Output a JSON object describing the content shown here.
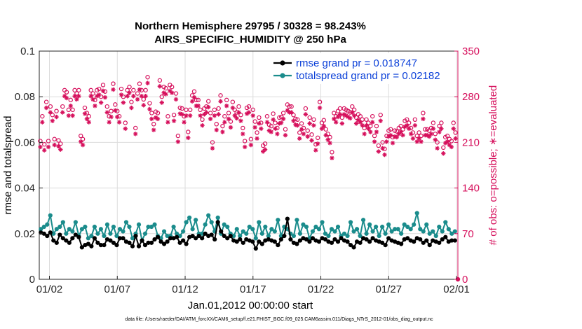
{
  "chart_data": {
    "type": "line",
    "title": "Northern Hemisphere 29795 / 30328 = 98.243%",
    "subtitle": "AIRS_SPECIFIC_HUMIDITY @ 250 hPa",
    "xlabel": "Jan.01,2012 00:00:00 start",
    "ylabel": "rmse and totalspread",
    "y2label": "# of obs: o=possible; ∗=evaluated",
    "footnote": "data file: /Users/raeder/DAI/ATM_forcXX/CAM6_setup/f.e21.FHIST_BGC.f09_025.CAM6assim.011/Diags_NTrS_2012-01/obs_diag_output.nc",
    "x_ticks": [
      "01/02",
      "01/07",
      "01/12",
      "01/17",
      "01/22",
      "01/27",
      "02/01"
    ],
    "x_tick_days": [
      1,
      6,
      11,
      16,
      21,
      26,
      31
    ],
    "xlim": [
      0.25,
      31.1
    ],
    "y_ticks": [
      "0",
      "0.02",
      "0.04",
      "0.06",
      "0.08",
      "0.1"
    ],
    "ylim": [
      0,
      0.1
    ],
    "y2_ticks": [
      "0",
      "70",
      "140",
      "210",
      "280",
      "350"
    ],
    "y2lim": [
      0,
      350
    ],
    "grid": true,
    "legend_position": "top-right",
    "colors": {
      "rmse": "#000000",
      "spread": "#1a8c8c",
      "obs": "#d6105c",
      "legend_text": "#0a3fd8"
    },
    "series": [
      {
        "name": "rmse grand pr = 0.018747",
        "axis": "left",
        "marker": "filled-circle",
        "values": [
          0.0205,
          0.02,
          0.019,
          0.0205,
          0.017,
          0.016,
          0.0195,
          0.018,
          0.017,
          0.016,
          0.018,
          0.0195,
          0.0185,
          0.014,
          0.015,
          0.0155,
          0.0145,
          0.018,
          0.016,
          0.015,
          0.015,
          0.0175,
          0.017,
          0.016,
          0.015,
          0.018,
          0.018,
          0.0165,
          0.016,
          0.0145,
          0.019,
          0.0145,
          0.017,
          0.015,
          0.016,
          0.016,
          0.0175,
          0.0185,
          0.0165,
          0.0155,
          0.0165,
          0.018,
          0.018,
          0.0185,
          0.016,
          0.017,
          0.0155,
          0.0185,
          0.019,
          0.018,
          0.019,
          0.018,
          0.02,
          0.019,
          0.0195,
          0.0175,
          0.025,
          0.021,
          0.019,
          0.018,
          0.019,
          0.017,
          0.0165,
          0.0175,
          0.016,
          0.0175,
          0.017,
          0.0165,
          0.0135,
          0.0165,
          0.0155,
          0.017,
          0.0175,
          0.017,
          0.0165,
          0.015,
          0.0175,
          0.019,
          0.0265,
          0.0175,
          0.016,
          0.0155,
          0.017,
          0.018,
          0.0175,
          0.0165,
          0.018,
          0.017,
          0.0165,
          0.018,
          0.0175,
          0.0165,
          0.016,
          0.0175,
          0.0165,
          0.018,
          0.017,
          0.0165,
          0.015,
          0.014,
          0.0165,
          0.016,
          0.018,
          0.0175,
          0.0165,
          0.018,
          0.017,
          0.0165,
          0.016,
          0.015,
          0.018,
          0.017,
          0.0165,
          0.016,
          0.0155,
          0.0175,
          0.018,
          0.017,
          0.0165,
          0.018,
          0.0175,
          0.016,
          0.017,
          0.015,
          0.017,
          0.0165,
          0.016,
          0.0175,
          0.0185,
          0.0165,
          0.017,
          0.017
        ]
      },
      {
        "name": "totalspread grand pr = 0.02182",
        "axis": "left",
        "marker": "filled-circle",
        "values": [
          0.022,
          0.023,
          0.024,
          0.028,
          0.02,
          0.022,
          0.023,
          0.025,
          0.02,
          0.022,
          0.021,
          0.025,
          0.019,
          0.022,
          0.023,
          0.018,
          0.019,
          0.023,
          0.02,
          0.022,
          0.019,
          0.024,
          0.02,
          0.023,
          0.019,
          0.022,
          0.021,
          0.025,
          0.023,
          0.018,
          0.02,
          0.024,
          0.017,
          0.02,
          0.023,
          0.023,
          0.024,
          0.019,
          0.018,
          0.021,
          0.019,
          0.019,
          0.023,
          0.02,
          0.019,
          0.021,
          0.025,
          0.027,
          0.022,
          0.026,
          0.02,
          0.02,
          0.024,
          0.028,
          0.025,
          0.021,
          0.027,
          0.02,
          0.024,
          0.023,
          0.02,
          0.019,
          0.022,
          0.019,
          0.021,
          0.02,
          0.023,
          0.022,
          0.018,
          0.025,
          0.02,
          0.023,
          0.019,
          0.022,
          0.021,
          0.026,
          0.019,
          0.023,
          0.022,
          0.02,
          0.019,
          0.026,
          0.02,
          0.024,
          0.023,
          0.018,
          0.021,
          0.023,
          0.022,
          0.025,
          0.02,
          0.019,
          0.022,
          0.021,
          0.023,
          0.019,
          0.02,
          0.019,
          0.025,
          0.021,
          0.022,
          0.019,
          0.026,
          0.02,
          0.024,
          0.021,
          0.023,
          0.019,
          0.023,
          0.02,
          0.024,
          0.021,
          0.022,
          0.022,
          0.02,
          0.024,
          0.023,
          0.022,
          0.024,
          0.029,
          0.022,
          0.021,
          0.024,
          0.02,
          0.021,
          0.019,
          0.023,
          0.021,
          0.025,
          0.022,
          0.02,
          0.021
        ]
      },
      {
        "name": "# of obs possible",
        "axis": "right",
        "marker": "o",
        "values": [
          212,
          250,
          207,
          272,
          212,
          265,
          252,
          215,
          258,
          213,
          208,
          265,
          290,
          287,
          260,
          275,
          260,
          290,
          285,
          290,
          220,
          215,
          263,
          255,
          250,
          290,
          285,
          275,
          290,
          292,
          280,
          298,
          288,
          265,
          250,
          258,
          300,
          268,
          258,
          250,
          292,
          280,
          240,
          290,
          295,
          272,
          290,
          232,
          285,
          300,
          290,
          276,
          290,
          310,
          270,
          255,
          238,
          257,
          255,
          305,
          280,
          295,
          293,
          250,
          298,
          295,
          252,
          285,
          220,
          263,
          262,
          250,
          260,
          226,
          260,
          282,
          288,
          275,
          275,
          260,
          245,
          262,
          265,
          273,
          255,
          210,
          260,
          238,
          262,
          282,
          235,
          250,
          275,
          255,
          242,
          272,
          260,
          256,
          265,
          252,
          232,
          212,
          263,
          265,
          215,
          260,
          242,
          225,
          248,
          240,
          205,
          208,
          250,
          237,
          235,
          254,
          240,
          232,
          248,
          249,
          255,
          230,
          268,
          265,
          265,
          252,
          246,
          245,
          225,
          239,
          232,
          262,
          228,
          248,
          222,
          245,
          207,
          217,
          272,
          240,
          244,
          230,
          223,
          218,
          195,
          255,
          250,
          258,
          262,
          248,
          262,
          260,
          258,
          256,
          265,
          260,
          248,
          253,
          250,
          245,
          232,
          245,
          240,
          235,
          250,
          220,
          235,
          205,
          252,
          210,
          200,
          220,
          228,
          230,
          218,
          228,
          227,
          232,
          235,
          230,
          243,
          245,
          240,
          232,
          225,
          245,
          220,
          225,
          220,
          255,
          230,
          230,
          228,
          232,
          240,
          223,
          210,
          235,
          240,
          202,
          218,
          220,
          215,
          212,
          240,
          225
        ]
      },
      {
        "name": "# of obs evaluated",
        "axis": "right",
        "marker": "*",
        "values": []
      }
    ],
    "legend": [
      "rmse grand pr = 0.018747",
      "totalspread grand pr = 0.02182"
    ]
  }
}
